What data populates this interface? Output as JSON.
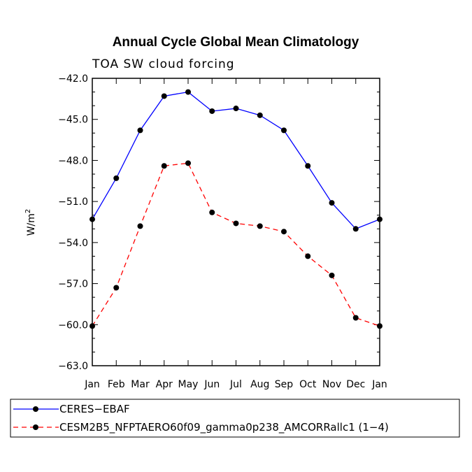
{
  "chart_data": {
    "type": "line",
    "title": "Annual Cycle Global Mean Climatology",
    "subtitle": "TOA SW cloud forcing",
    "xlabel": "",
    "ylabel": "W/m",
    "ylabel_superscript": "2",
    "ylim": [
      -63.0,
      -42.0
    ],
    "yticks": [
      -42.0,
      -45.0,
      -48.0,
      -51.0,
      -54.0,
      -57.0,
      -60.0,
      -63.0
    ],
    "ytick_labels": [
      "−42.0",
      "−45.0",
      "−48.0",
      "−51.0",
      "−54.0",
      "−57.0",
      "−60.0",
      "−63.0"
    ],
    "categories": [
      "Jan",
      "Feb",
      "Mar",
      "Apr",
      "May",
      "Jun",
      "Jul",
      "Aug",
      "Sep",
      "Oct",
      "Nov",
      "Dec",
      "Jan"
    ],
    "series": [
      {
        "name": "CERES−EBAF",
        "color": "#0000ff",
        "dash": "solid",
        "values": [
          -52.3,
          -49.3,
          -45.8,
          -43.3,
          -43.0,
          -44.4,
          -44.2,
          -44.7,
          -45.8,
          -48.4,
          -51.1,
          -53.0,
          -52.3
        ]
      },
      {
        "name": "CESM2B5_NFPTAERO60f09_gamma0p238_AMCORRallc1 (1−4)",
        "color": "#ff0000",
        "dash": "dashed",
        "values": [
          -60.1,
          -57.3,
          -52.8,
          -48.4,
          -48.2,
          -51.8,
          -52.6,
          -52.8,
          -53.2,
          -55.0,
          -56.4,
          -59.5,
          -60.1
        ]
      }
    ]
  }
}
